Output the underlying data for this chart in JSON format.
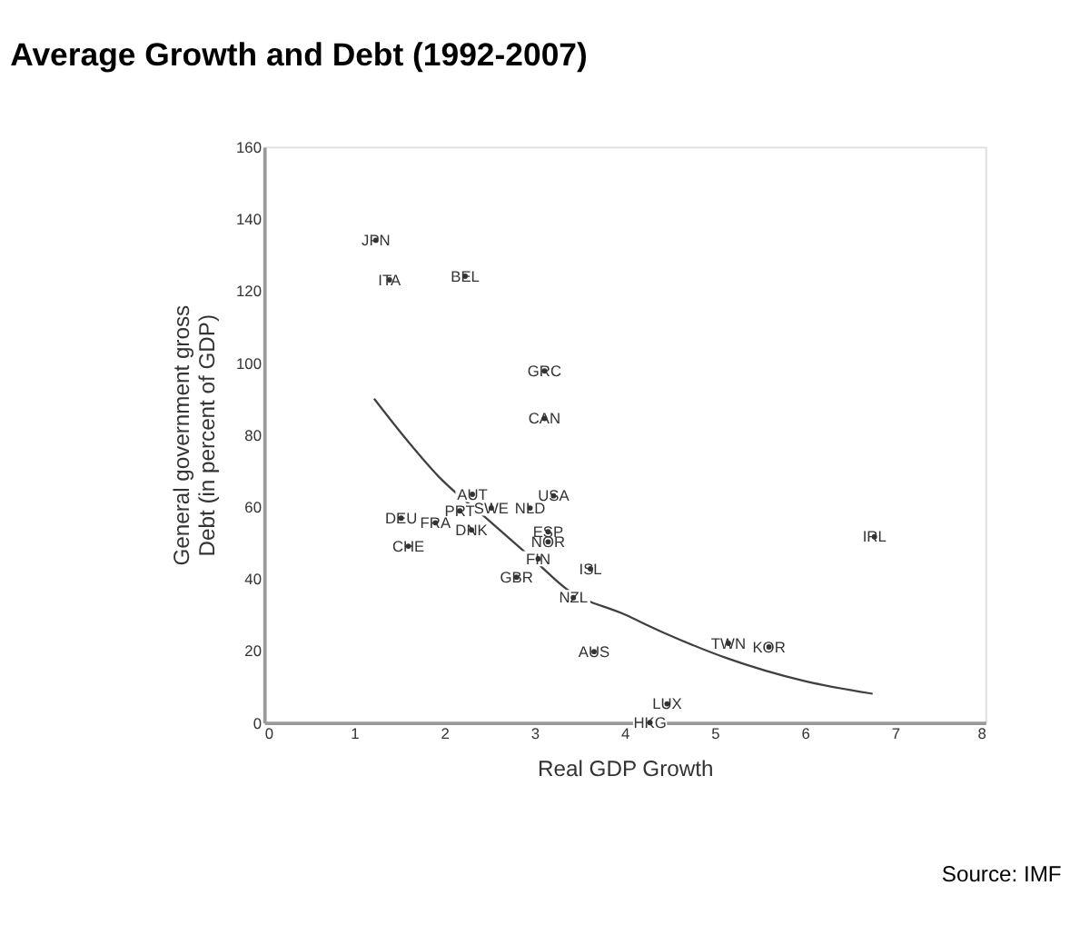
{
  "chart_data": {
    "type": "scatter",
    "title": "Average Growth and Debt (1992-2007)",
    "xlabel": "Real GDP Growth",
    "ylabel": "General government gross Debt  (in percent of GDP)",
    "xlim": [
      0,
      8
    ],
    "xticks": [
      0,
      1,
      2,
      3,
      4,
      5,
      6,
      7,
      8
    ],
    "ylim": [
      0,
      160
    ],
    "yticks": [
      0,
      20,
      40,
      60,
      80,
      100,
      120,
      140,
      160
    ],
    "grid": false,
    "series": [
      {
        "marker": "none",
        "color": "#333333",
        "x": [
          1.24,
          1.39,
          2.23,
          3.11,
          3.11,
          3.21,
          2.31,
          2.52,
          2.95,
          1.52,
          1.9,
          2.17,
          2.3,
          1.6,
          3.15,
          3.15,
          3.04,
          2.8,
          3.62,
          3.43,
          3.66,
          5.15,
          5.6,
          4.47,
          4.28,
          6.77
        ],
        "values": [
          134,
          123,
          124,
          97.7,
          84.5,
          63,
          63.4,
          59.6,
          59.6,
          56.8,
          55.5,
          58.8,
          53.5,
          49,
          53,
          50.2,
          45.5,
          40.4,
          42.7,
          34.7,
          19.7,
          22,
          21,
          5.2,
          0,
          51.6
        ],
        "value_labels": [
          "JPN",
          "ITA",
          "BEL",
          "GRC",
          "CAN",
          "USA",
          "AUT",
          "SWE",
          "NLD",
          "DEU",
          "FRA",
          "PRT",
          "DNK",
          "CHE",
          "ESP",
          "NOR",
          "FIN",
          "GBR",
          "ISL",
          "NZL",
          "AUS",
          "TWN",
          "KOR",
          "LUX",
          "HKG",
          "IRL"
        ]
      },
      {
        "type": "line",
        "color": "#404040",
        "x": [
          1.22,
          1.6,
          1.93,
          2.5,
          3.0,
          3.36,
          4.0,
          4.43,
          5.12,
          6.0,
          6.75
        ],
        "values": [
          90,
          78,
          68.5,
          56,
          45,
          37,
          30,
          25,
          18,
          11.5,
          8
        ]
      }
    ],
    "annotations": [
      "Source: IMF"
    ]
  }
}
